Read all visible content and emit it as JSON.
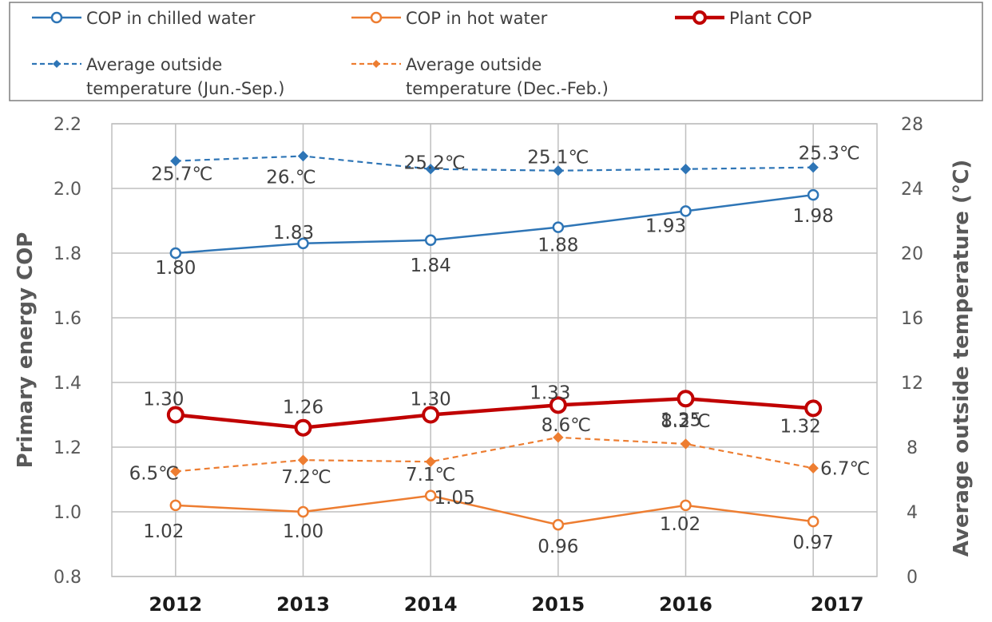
{
  "chart_data": {
    "type": "line",
    "categories": [
      "2012",
      "2013",
      "2014",
      "2015",
      "2016",
      "2017"
    ],
    "ylabel": "Primary energy COP",
    "y2label": "Average outside temperature (℃)",
    "ylim": [
      0.8,
      2.2
    ],
    "y_ticks": [
      "0.8",
      "1.0",
      "1.2",
      "1.4",
      "1.6",
      "1.8",
      "2.0",
      "2.2"
    ],
    "y2lim": [
      0,
      28
    ],
    "y2_ticks": [
      "0",
      "4",
      "8",
      "12",
      "16",
      "20",
      "24",
      "28"
    ],
    "grid": true,
    "legend_position": "top",
    "series": [
      {
        "name": "COP in chilled water",
        "axis": "left",
        "color": "#2E75B6",
        "style": "solid",
        "marker": "open-circle",
        "values": [
          1.8,
          1.83,
          1.84,
          1.88,
          1.93,
          1.98
        ],
        "labels": [
          "1.80",
          "1.83",
          "1.84",
          "1.88",
          "1.93",
          "1.98"
        ]
      },
      {
        "name": "COP in hot water",
        "axis": "left",
        "color": "#ED7D31",
        "style": "solid",
        "marker": "open-circle",
        "values": [
          1.02,
          1.0,
          1.05,
          0.96,
          1.02,
          0.97
        ],
        "labels": [
          "1.02",
          "1.00",
          "1.05",
          "0.96",
          "1.02",
          "0.97"
        ]
      },
      {
        "name": "Plant COP",
        "axis": "left",
        "color": "#C00000",
        "style": "solid-thick",
        "marker": "open-circle-large",
        "values": [
          1.3,
          1.26,
          1.3,
          1.33,
          1.35,
          1.32
        ],
        "labels": [
          "1.30",
          "1.26",
          "1.30",
          "1.33",
          "1.35",
          "1.32"
        ]
      },
      {
        "name": "Average outside temperature (Jun.-Sep.)",
        "legend_lines": [
          "Average outside",
          "temperature (Jun.-Sep.)"
        ],
        "axis": "right",
        "color": "#2E75B6",
        "style": "dashed",
        "marker": "diamond",
        "values": [
          25.7,
          26.0,
          25.2,
          25.1,
          25.2,
          25.3
        ],
        "labels": [
          "25.7℃",
          "26.℃",
          "25.2℃",
          "25.1℃",
          "",
          "25.3℃"
        ]
      },
      {
        "name": "Average outside temperature (Dec.-Feb.)",
        "legend_lines": [
          "Average outside",
          "temperature (Dec.-Feb.)"
        ],
        "axis": "right",
        "color": "#ED7D31",
        "style": "dashed",
        "marker": "diamond",
        "values": [
          6.5,
          7.2,
          7.1,
          8.6,
          8.2,
          6.7
        ],
        "labels": [
          "6.5℃",
          "7.2℃",
          "7.1℃",
          "8.6℃",
          "8.2℃",
          "6.7℃"
        ]
      }
    ]
  }
}
